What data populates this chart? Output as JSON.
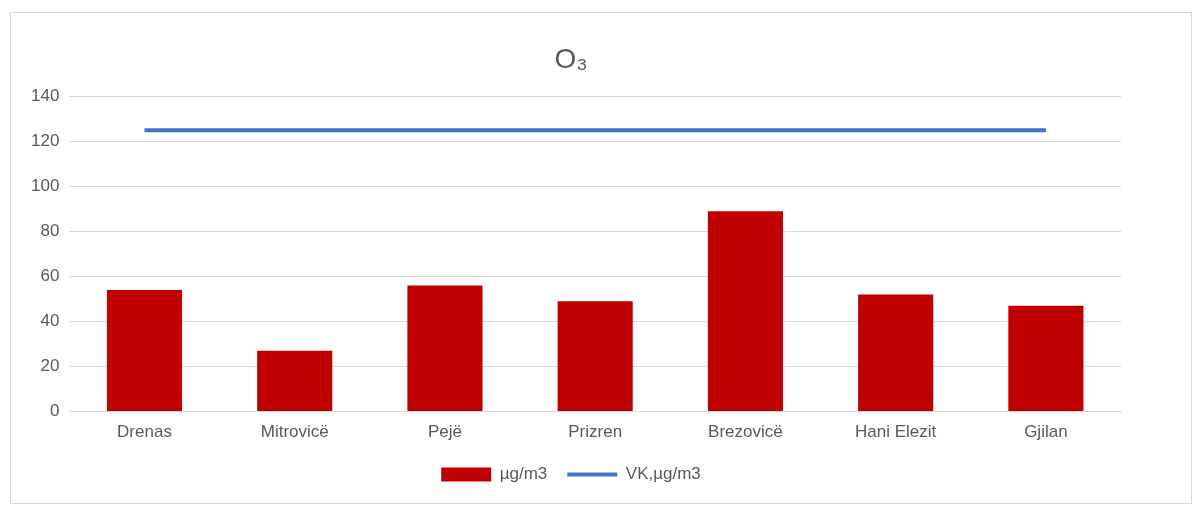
{
  "chart_data": {
    "type": "bar",
    "title": "O₃",
    "categories": [
      "Drenas",
      "Mitrovicë",
      "Pejë",
      "Prizren",
      "Brezovicë",
      "Hani Elezit",
      "Gjilan"
    ],
    "series": [
      {
        "name": "µg/m3",
        "color": "#c00000",
        "values": [
          54,
          27,
          56,
          49,
          89,
          52,
          47
        ]
      },
      {
        "name": "VK,µg/m3",
        "type": "line",
        "color": "#4472c4",
        "values": [
          125,
          125,
          125,
          125,
          125,
          125,
          125
        ]
      }
    ],
    "ylim": [
      0,
      140
    ],
    "yticks": [
      0,
      20,
      40,
      60,
      80,
      100,
      120,
      140
    ],
    "grid": "y",
    "legend": "bottom",
    "marker": "none"
  }
}
